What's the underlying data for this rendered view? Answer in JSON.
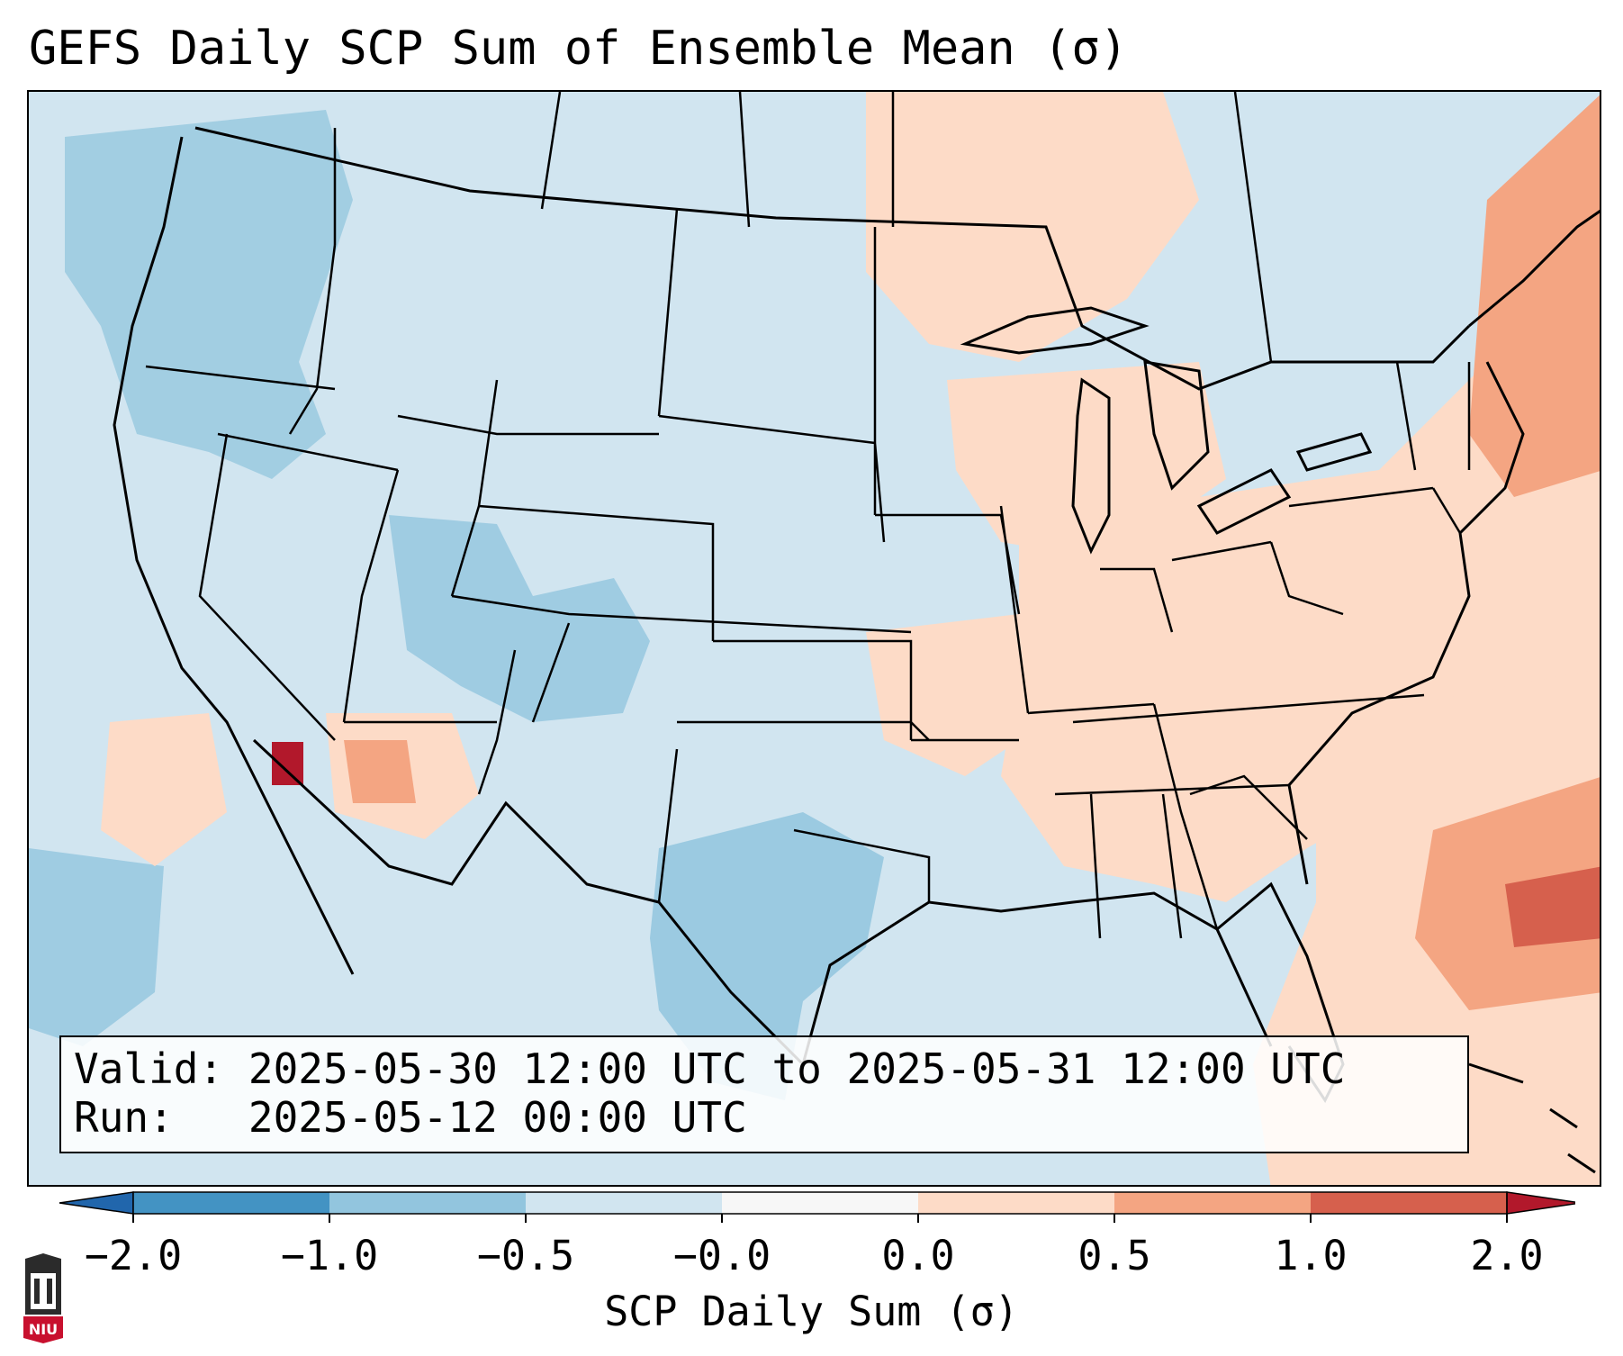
{
  "title": "GEFS Daily SCP Sum of Ensemble Mean (σ)",
  "info": {
    "valid_label": "Valid:",
    "valid_value": "2025-05-30 12:00 UTC to 2025-05-31 12:00 UTC",
    "run_label": "Run:",
    "run_value": "2025-05-12 00:00 UTC"
  },
  "colorbar": {
    "label": "SCP Daily Sum (σ)",
    "ticks": [
      "−2.0",
      "−1.0",
      "−0.5",
      "−0.0",
      "0.0",
      "0.5",
      "1.0",
      "2.0"
    ],
    "colors": [
      "#2166ac",
      "#4393c3",
      "#92c5de",
      "#d1e5f0",
      "#f7f7f7",
      "#fddbc7",
      "#f4a582",
      "#d6604d",
      "#b2182b"
    ],
    "extend": "both"
  },
  "map": {
    "background_color": "#d1e5f0",
    "land_outline_color": "#000000",
    "regions_positive": [
      "Northeast",
      "Great Lakes",
      "Southeast",
      "Arizona",
      "Atlantic"
    ],
    "regions_negative": [
      "Pacific Northwest",
      "Colorado",
      "Utah",
      "Texas",
      "Pacific"
    ]
  },
  "logo": {
    "text": "NIU"
  }
}
